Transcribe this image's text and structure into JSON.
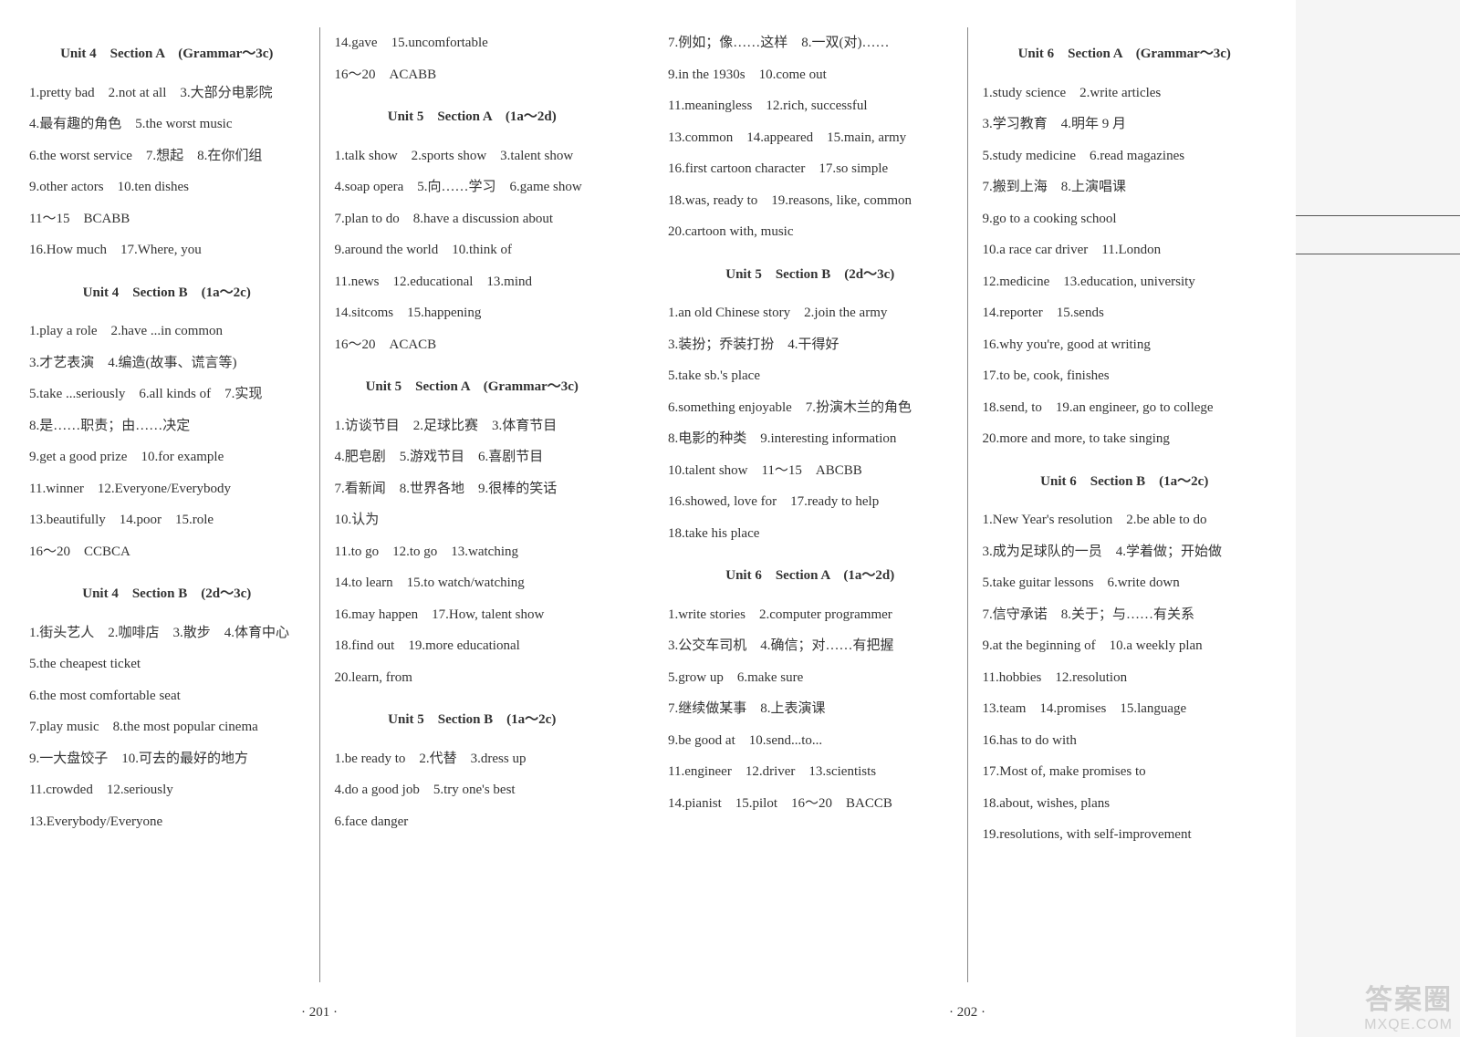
{
  "layout": {
    "hlines": [
      236,
      278
    ],
    "background": "#ffffff",
    "text_color": "#333333",
    "divider_color": "#888888"
  },
  "watermark": {
    "cn": "答案圈",
    "url": "MXQE.COM"
  },
  "pageLeft": {
    "pagenum": "· 201 ·",
    "col1": {
      "sections": [
        {
          "title": "Unit 4　Section A　(Grammar～3c)",
          "lines": [
            "1.pretty bad　2.not at all　3.大部分电影院",
            "4.最有趣的角色　5.the worst music",
            "6.the worst service　7.想起　8.在你们组",
            "9.other actors　10.ten dishes",
            "11～15　BCABB",
            "16.How much　17.Where, you"
          ]
        },
        {
          "title": "Unit 4　Section B　(1a～2c)",
          "lines": [
            "1.play a role　2.have ...in common",
            "3.才艺表演　4.编造(故事、谎言等)",
            "5.take ...seriously　6.all kinds of　7.实现",
            "8.是……职责；由……决定",
            "9.get a good prize　10.for example",
            "11.winner　12.Everyone/Everybody",
            "13.beautifully　14.poor　15.role",
            "16～20　CCBCA"
          ]
        },
        {
          "title": "Unit 4　Section B　(2d～3c)",
          "lines": [
            "1.街头艺人　2.咖啡店　3.散步　4.体育中心",
            "5.the cheapest ticket",
            "6.the most comfortable seat",
            "7.play music　8.the most popular cinema",
            "9.一大盘饺子　10.可去的最好的地方",
            "11.crowded　12.seriously",
            "13.Everybody/Everyone"
          ]
        }
      ]
    },
    "col2": {
      "sections": [
        {
          "title": "",
          "lines": [
            "14.gave　15.uncomfortable",
            "16～20　ACABB"
          ]
        },
        {
          "title": "Unit 5　Section A　(1a～2d)",
          "lines": [
            "1.talk show　2.sports show　3.talent show",
            "4.soap opera　5.向……学习　6.game show",
            "7.plan to do　8.have a discussion about",
            "9.around the world　10.think of",
            "11.news　12.educational　13.mind",
            "14.sitcoms　15.happening",
            "16～20　ACACB"
          ]
        },
        {
          "title": "Unit 5　Section A　(Grammar～3c)",
          "lines": [
            "1.访谈节目　2.足球比赛　3.体育节目",
            "4.肥皂剧　5.游戏节目　6.喜剧节目",
            "7.看新闻　8.世界各地　9.很棒的笑话",
            "10.认为",
            "11.to go　12.to go　13.watching",
            "14.to learn　15.to watch/watching",
            "16.may happen　17.How, talent show",
            "18.find out　19.more educational",
            "20.learn, from"
          ]
        },
        {
          "title": "Unit 5　Section B　(1a～2c)",
          "lines": [
            "1.be ready to　2.代替　3.dress up",
            "4.do a good job　5.try one's best",
            "6.face danger"
          ]
        }
      ]
    }
  },
  "pageRight": {
    "pagenum": "· 202 ·",
    "col1": {
      "sections": [
        {
          "title": "",
          "lines": [
            "7.例如；像……这样　8.一双(对)……",
            "9.in the 1930s　10.come out",
            "11.meaningless　12.rich, successful",
            "13.common　14.appeared　15.main, army",
            "16.first cartoon character　17.so simple",
            "18.was, ready to　19.reasons, like, common",
            "20.cartoon with, music"
          ]
        },
        {
          "title": "Unit 5　Section B　(2d～3c)",
          "lines": [
            "1.an old Chinese story　2.join the army",
            "3.装扮；乔装打扮　4.干得好",
            "5.take sb.'s place",
            "6.something enjoyable　7.扮演木兰的角色",
            "8.电影的种类　9.interesting information",
            "10.talent show　11～15　ABCBB",
            "16.showed, love for　17.ready to help",
            "18.take his place"
          ]
        },
        {
          "title": "Unit 6　Section A　(1a～2d)",
          "lines": [
            "1.write stories　2.computer programmer",
            "3.公交车司机　4.确信；对……有把握",
            "5.grow up　6.make sure",
            "7.继续做某事　8.上表演课",
            "9.be good at　10.send...to...",
            "11.engineer　12.driver　13.scientists",
            "14.pianist　15.pilot　16～20　BACCB"
          ]
        }
      ]
    },
    "col2": {
      "sections": [
        {
          "title": "Unit 6　Section A　(Grammar～3c)",
          "lines": [
            "1.study science　2.write articles",
            "3.学习教育　4.明年 9 月",
            "5.study medicine　6.read magazines",
            "7.搬到上海　8.上演唱课",
            "9.go to a cooking school",
            "10.a race car driver　11.London",
            "12.medicine　13.education, university",
            "14.reporter　15.sends",
            "16.why you're, good at writing",
            "17.to be, cook, finishes",
            "18.send, to　19.an engineer, go to college",
            "20.more and more, to take singing"
          ]
        },
        {
          "title": "Unit 6　Section B　(1a～2c)",
          "lines": [
            "1.New Year's resolution　2.be able to do",
            "3.成为足球队的一员　4.学着做；开始做",
            "5.take guitar lessons　6.write down",
            "7.信守承诺　8.关于；与……有关系",
            "9.at the beginning of　10.a weekly plan",
            "11.hobbies　12.resolution",
            "13.team　14.promises　15.language",
            "16.has to do with",
            "17.Most of, make promises to",
            "18.about, wishes, plans",
            "19.resolutions, with self-improvement"
          ]
        }
      ]
    }
  }
}
